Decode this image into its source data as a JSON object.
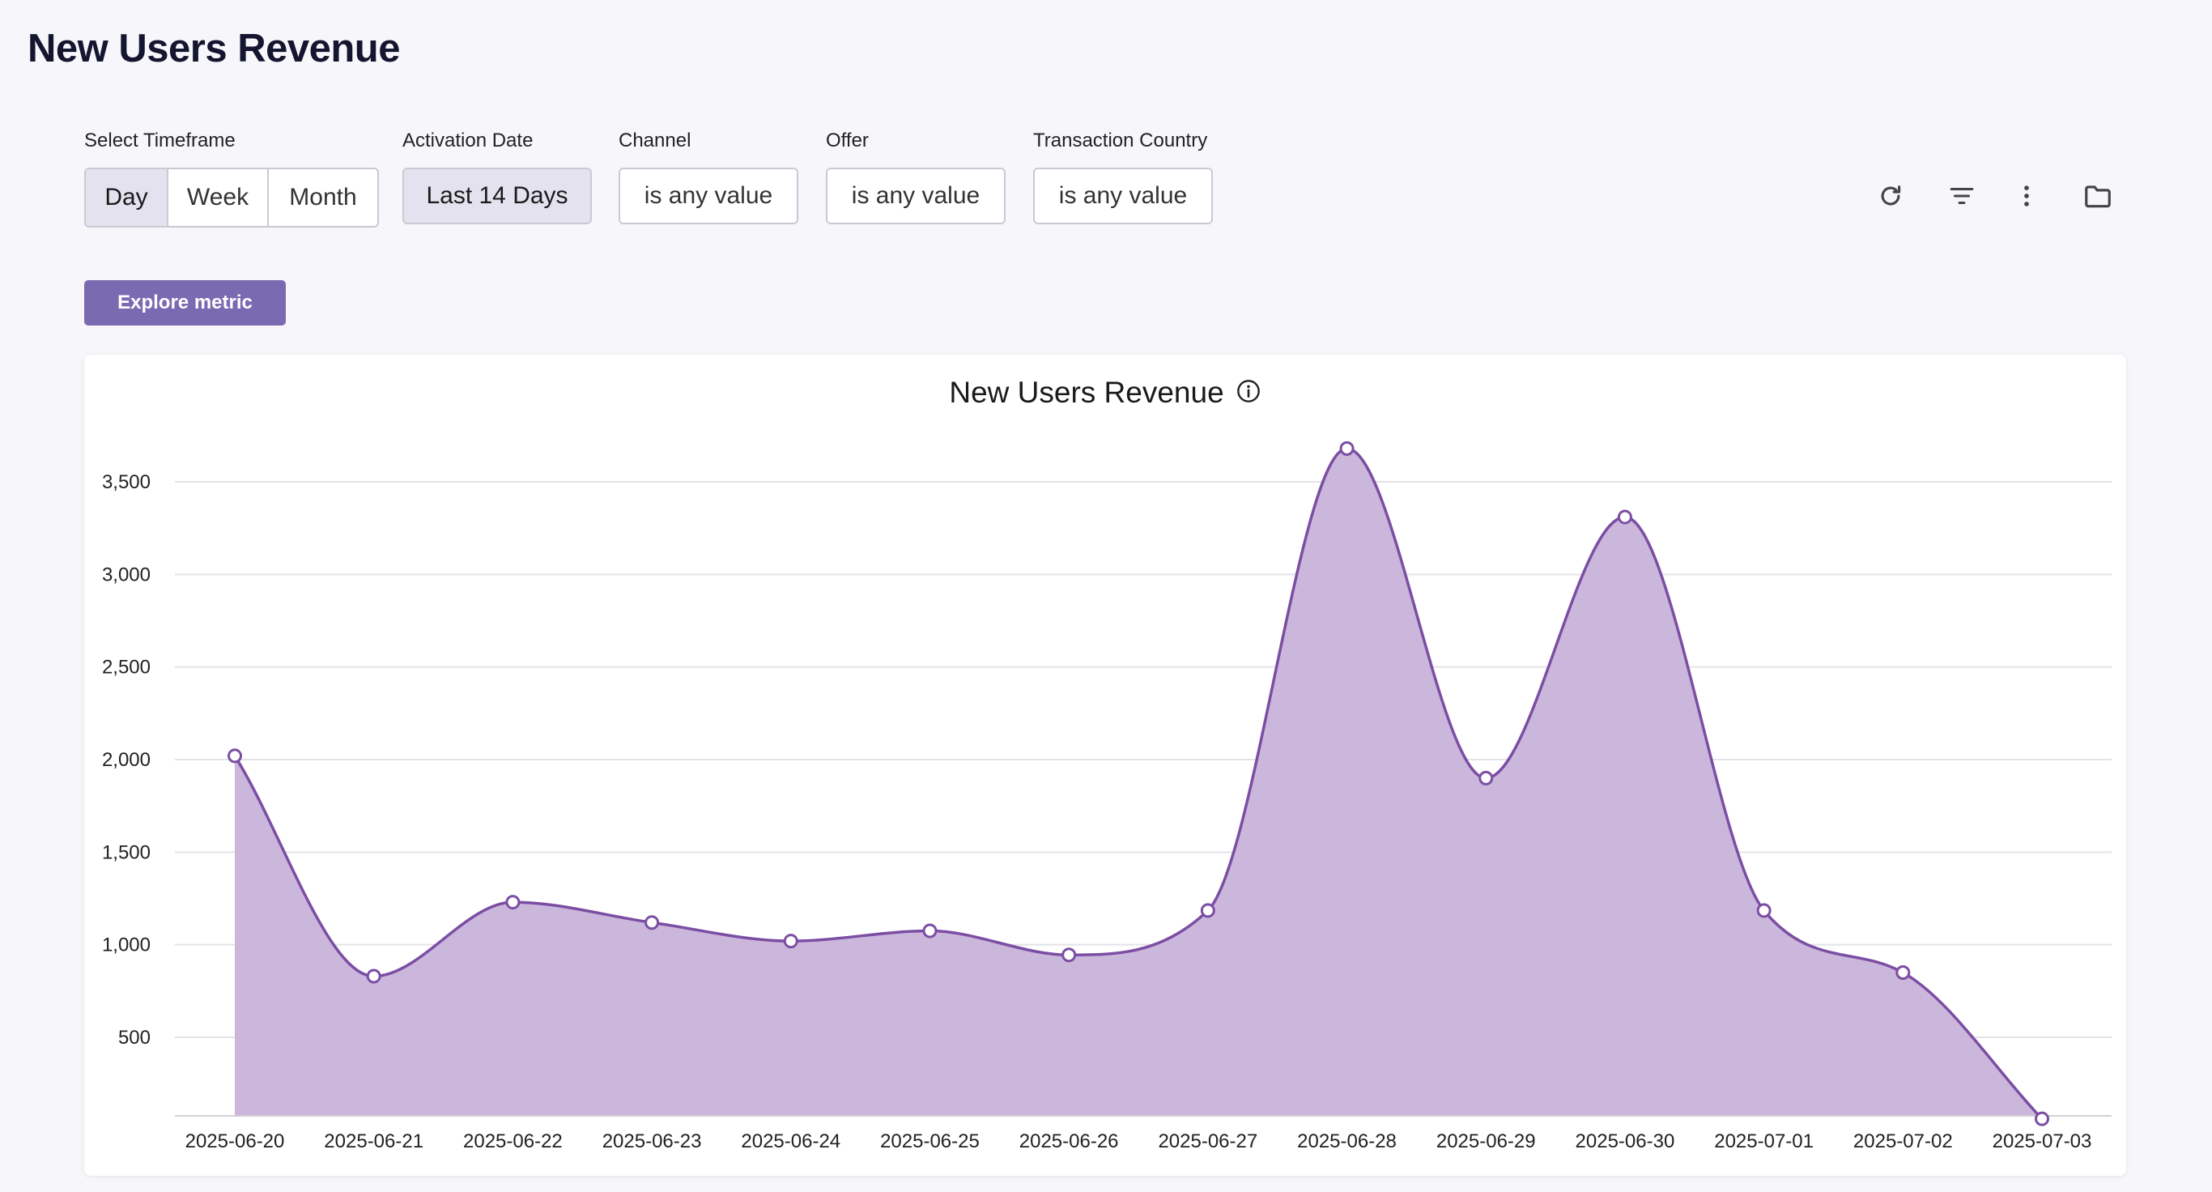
{
  "page": {
    "title": "New Users Revenue"
  },
  "filters": {
    "timeframe": {
      "label": "Select Timeframe",
      "options": [
        "Day",
        "Week",
        "Month"
      ],
      "selected": "Day"
    },
    "activation_date": {
      "label": "Activation Date",
      "value": "Last 14 Days"
    },
    "channel": {
      "label": "Channel",
      "value": "is any value"
    },
    "offer": {
      "label": "Offer",
      "value": "is any value"
    },
    "transaction_country": {
      "label": "Transaction Country",
      "value": "is any value"
    }
  },
  "toolbar": {
    "icons": [
      "refresh-icon",
      "filter-icon",
      "more-vertical-icon",
      "folder-icon"
    ]
  },
  "actions": {
    "explore_label": "Explore metric"
  },
  "colors": {
    "accent": "#7a6ab2",
    "line": "#7b4ea3",
    "area": "#c9b3da"
  },
  "chart_data": {
    "type": "area",
    "title": "New Users Revenue",
    "xlabel": "",
    "ylabel": "",
    "categories": [
      "2025-06-20",
      "2025-06-21",
      "2025-06-22",
      "2025-06-23",
      "2025-06-24",
      "2025-06-25",
      "2025-06-26",
      "2025-06-27",
      "2025-06-28",
      "2025-06-29",
      "2025-06-30",
      "2025-07-01",
      "2025-07-02",
      "2025-07-03"
    ],
    "values": [
      2020,
      830,
      1230,
      1120,
      1020,
      1075,
      945,
      1185,
      3680,
      1900,
      3310,
      1185,
      850,
      60
    ],
    "ylim": [
      0,
      3750
    ],
    "yticks": [
      500,
      1000,
      1500,
      2000,
      2500,
      3000,
      3500
    ],
    "ytick_labels": [
      "500",
      "1,000",
      "1,500",
      "2,000",
      "2,500",
      "3,000",
      "3,500"
    ],
    "grid": true,
    "legend": "none"
  }
}
